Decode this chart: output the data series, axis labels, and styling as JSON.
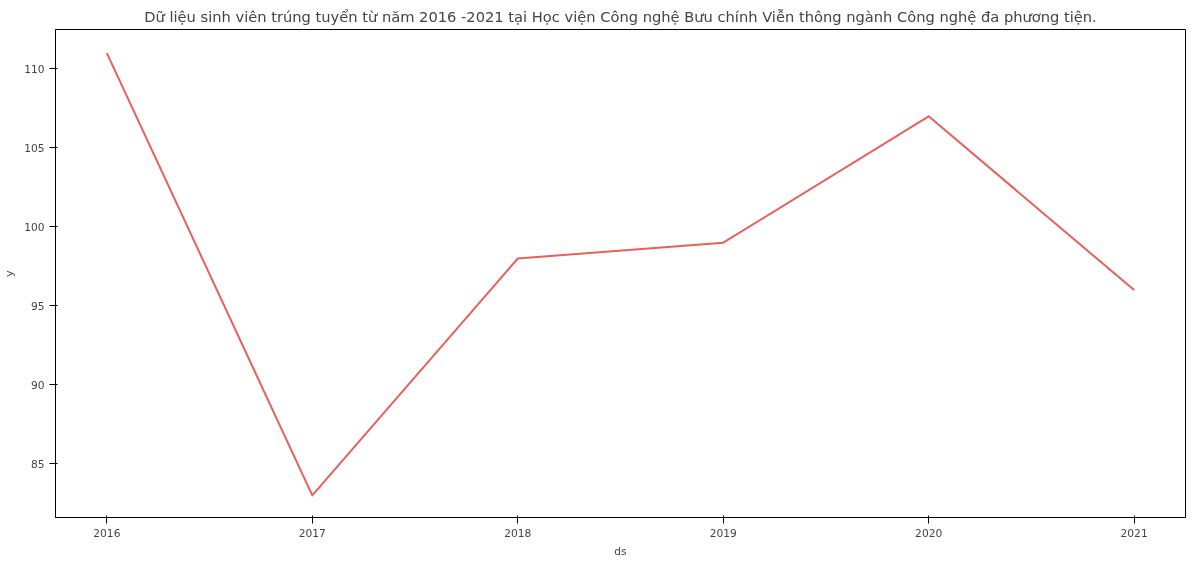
{
  "chart_data": {
    "type": "line",
    "title": "Dữ liệu sinh viên trúng tuyển từ năm 2016 -2021 tại Học viện Công nghệ Bưu chính Viễn thông ngành Công nghệ đa phương tiện.",
    "xlabel": "ds",
    "ylabel": "y",
    "x": [
      2016,
      2017,
      2018,
      2019,
      2020,
      2021
    ],
    "series": [
      {
        "color": "#e8605c",
        "values": [
          111,
          83,
          98,
          99,
          107,
          96
        ]
      }
    ],
    "xlim": [
      2015.75,
      2021.25
    ],
    "ylim": [
      81.6,
      112.5
    ],
    "xticks": [
      2016,
      2017,
      2018,
      2019,
      2020,
      2021
    ],
    "yticks": [
      85,
      90,
      95,
      100,
      105,
      110
    ],
    "grid": false,
    "marker": "none",
    "line_style": "solid"
  }
}
